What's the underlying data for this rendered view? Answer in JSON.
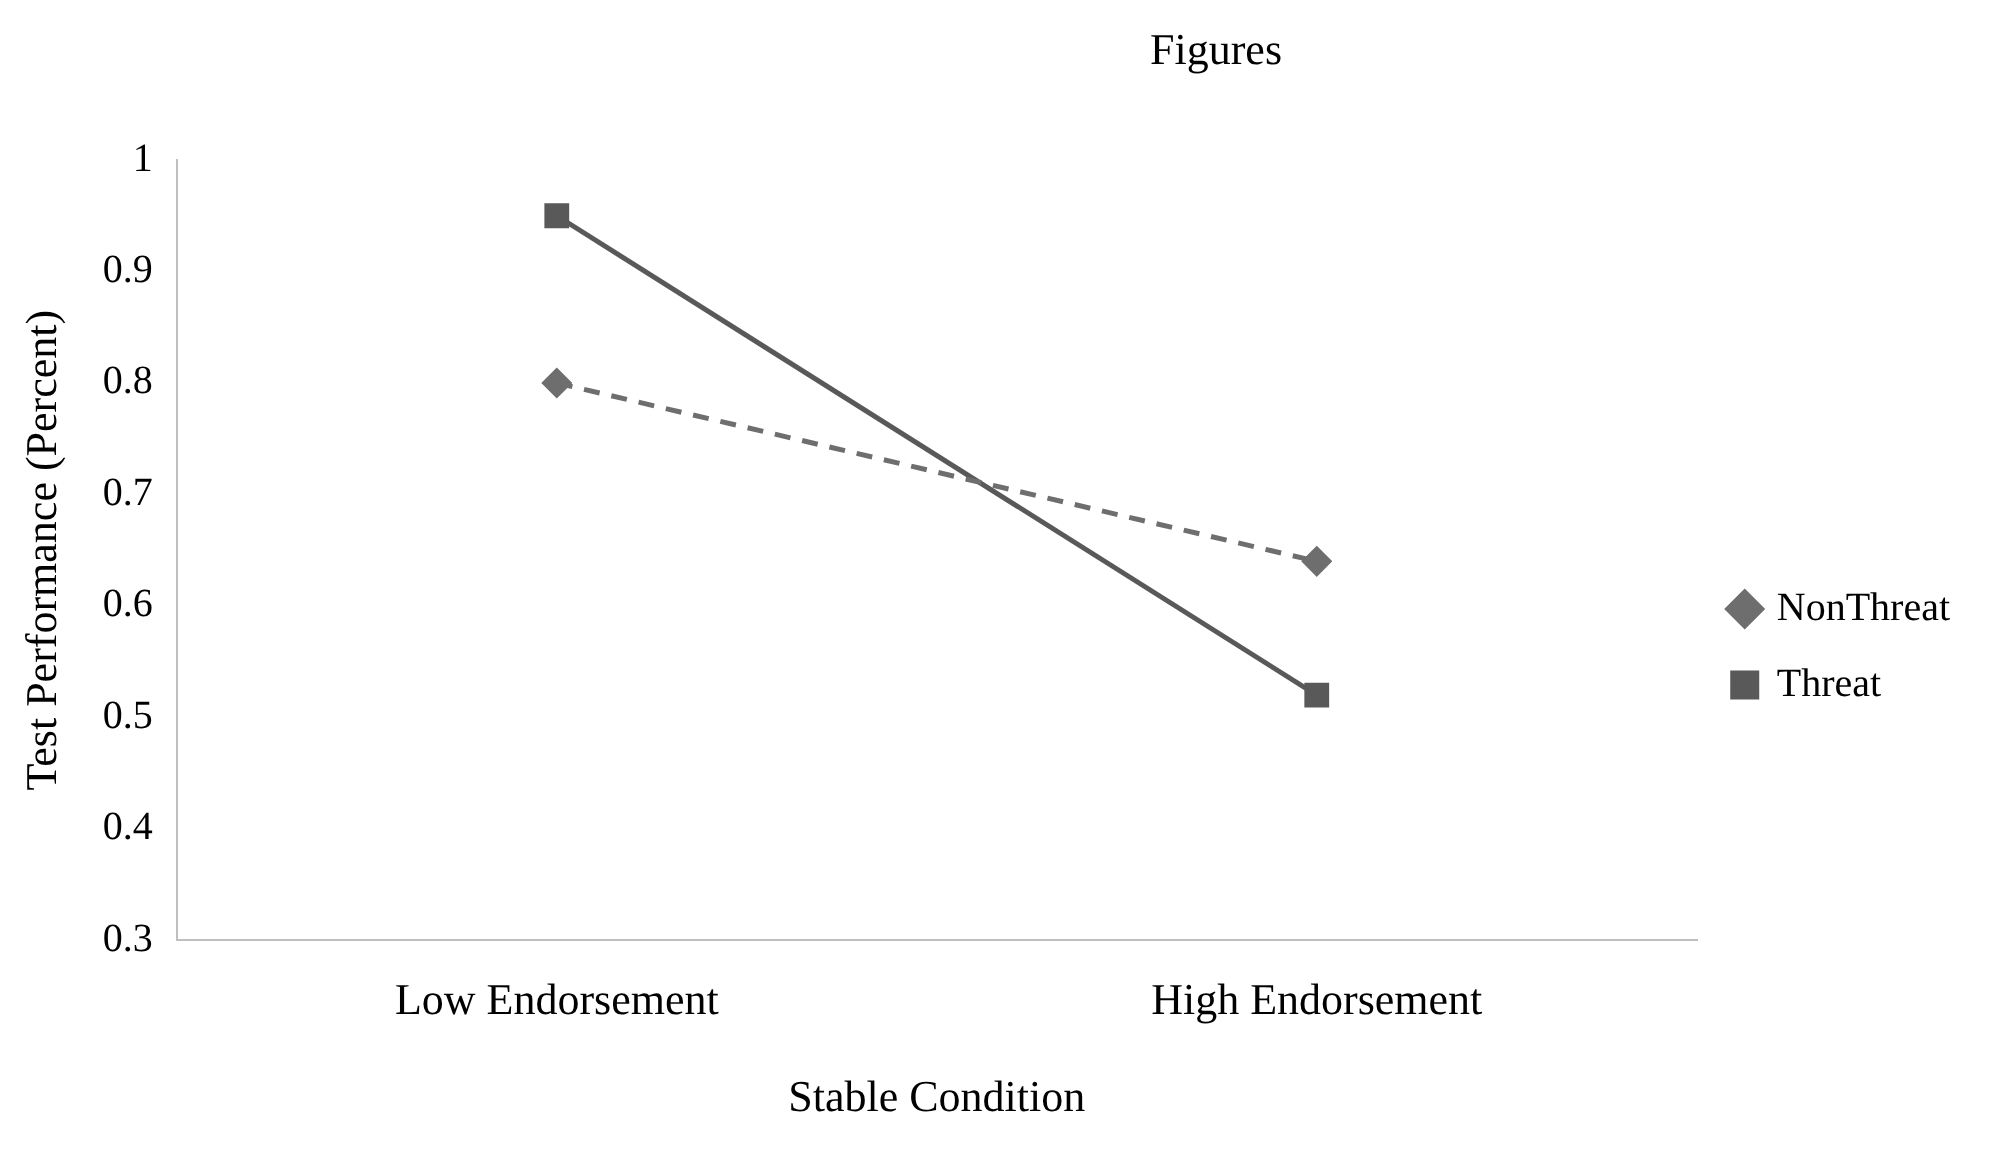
{
  "chart_data": {
    "type": "line",
    "title": "Figures",
    "xlabel": "Stable Condition",
    "ylabel": "Test Performance (Percent)",
    "categories": [
      "Low Endorsement",
      "High Endorsement"
    ],
    "series": [
      {
        "name": "NonThreat",
        "color": "#6e6e6e",
        "values": [
          0.8,
          0.64
        ],
        "marker": "diamond",
        "line_style": "dashed"
      },
      {
        "name": "Threat",
        "color": "#595959",
        "values": [
          0.95,
          0.52
        ],
        "marker": "square",
        "line_style": "solid"
      }
    ],
    "ylim": [
      0.3,
      1
    ],
    "yticks": [
      0.3,
      0.4,
      0.5,
      0.6,
      0.7,
      0.8,
      0.9,
      1
    ],
    "grid": false,
    "legend": "right"
  }
}
